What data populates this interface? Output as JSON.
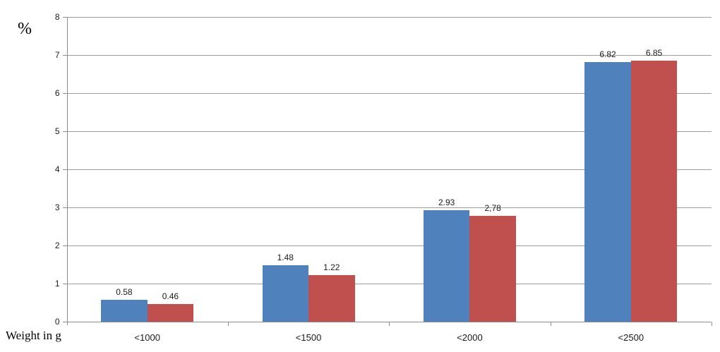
{
  "chart_data": {
    "type": "bar",
    "title": "",
    "ylabel": "%",
    "xlabel": "Weight in g",
    "categories": [
      "<1000",
      "<1500",
      "<2000",
      "<2500"
    ],
    "series": [
      {
        "color_name": "blue",
        "color": "#4F81BD",
        "values": [
          0.58,
          1.48,
          2.93,
          6.82
        ],
        "data_labels": [
          "0.58",
          "1.48",
          "2.93",
          "6.82"
        ]
      },
      {
        "color_name": "red",
        "color": "#C0504D",
        "values": [
          0.46,
          1.22,
          2.78,
          6.85
        ],
        "data_labels": [
          "0.46",
          "1.22",
          "2,78",
          "6.85"
        ]
      }
    ],
    "ylim": [
      0,
      8
    ],
    "y_tick_step": 1,
    "y_tick_labels": [
      "0",
      "1",
      "2",
      "3",
      "4",
      "5",
      "6",
      "7",
      "8"
    ],
    "grid": true,
    "legend": "none",
    "colors": {
      "gridline": "#9c9c9c",
      "axis": "#8c8c8c",
      "label_text": "#1a1a1a",
      "title_text": "#000000",
      "background": "#ffffff"
    }
  }
}
